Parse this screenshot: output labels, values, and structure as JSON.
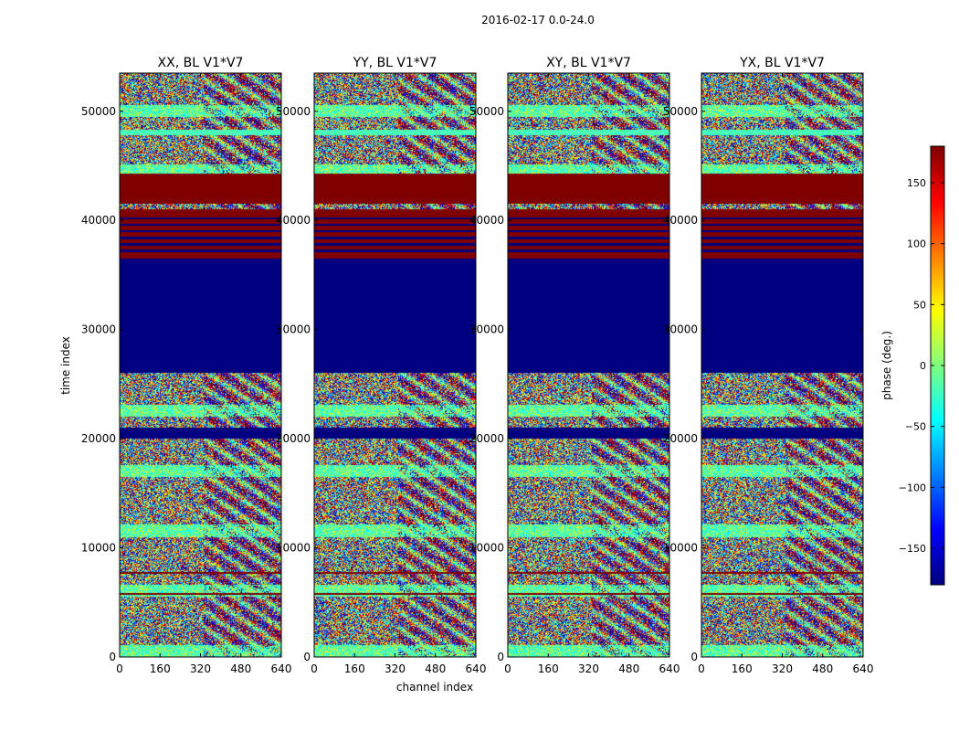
{
  "chart_data": {
    "type": "heatmap",
    "suptitle": "2016-02-17 0.0-24.0",
    "xlabel": "channel index",
    "ylabel": "time index",
    "xlim": [
      0,
      640
    ],
    "ylim": [
      0,
      53500
    ],
    "xticks": [
      0,
      160,
      320,
      480,
      640
    ],
    "yticks": [
      0,
      10000,
      20000,
      30000,
      40000,
      50000
    ],
    "colorbar": {
      "label": "phase (deg.)",
      "range": [
        -180,
        180
      ],
      "ticks": [
        150,
        100,
        50,
        0,
        -50,
        -100,
        -150
      ],
      "tick_labels": [
        "150",
        "100",
        "50",
        "0",
        "−50",
        "−100",
        "−150"
      ],
      "colormap": "jet",
      "low_color": "#00007f",
      "high_color": "#7f0000"
    },
    "panels": [
      {
        "title": "XX, BL V1*V7",
        "polarization": "XX",
        "seed": 11
      },
      {
        "title": "YY, BL V1*V7",
        "polarization": "YY",
        "seed": 23
      },
      {
        "title": "XY, BL V1*V7",
        "polarization": "XY",
        "seed": 37
      },
      {
        "title": "YX, BL V1*V7",
        "polarization": "YX",
        "seed": 53
      }
    ],
    "time_segments": [
      {
        "from": 0,
        "to": 6000,
        "fill": "noise"
      },
      {
        "from": 6000,
        "to": 19000,
        "fill": "noise"
      },
      {
        "from": 19000,
        "to": 20000,
        "fill": "noise"
      },
      {
        "from": 20000,
        "to": 21000,
        "fill": "flagged",
        "phase": -180
      },
      {
        "from": 21000,
        "to": 26000,
        "fill": "noise"
      },
      {
        "from": 26000,
        "to": 36500,
        "fill": "flagged",
        "phase": -180
      },
      {
        "from": 36500,
        "to": 41000,
        "fill": "flagged",
        "phase": 180
      },
      {
        "from": 41000,
        "to": 41500,
        "fill": "noise"
      },
      {
        "from": 41500,
        "to": 44300,
        "fill": "flagged",
        "phase": 180
      },
      {
        "from": 44300,
        "to": 47800,
        "fill": "noise"
      },
      {
        "from": 47800,
        "to": 48300,
        "fill": "constant",
        "phase": -20
      },
      {
        "from": 48300,
        "to": 53500,
        "fill": "noise"
      }
    ],
    "row_flags": [
      {
        "t": 5800,
        "phase": 180
      },
      {
        "t": 7700,
        "phase": 180
      },
      {
        "t": 37200,
        "phase": -180
      },
      {
        "t": 37800,
        "phase": -180
      },
      {
        "t": 38400,
        "phase": -180
      },
      {
        "t": 39000,
        "phase": -180
      },
      {
        "t": 39600,
        "phase": -180
      },
      {
        "t": 40200,
        "phase": -180
      }
    ]
  }
}
